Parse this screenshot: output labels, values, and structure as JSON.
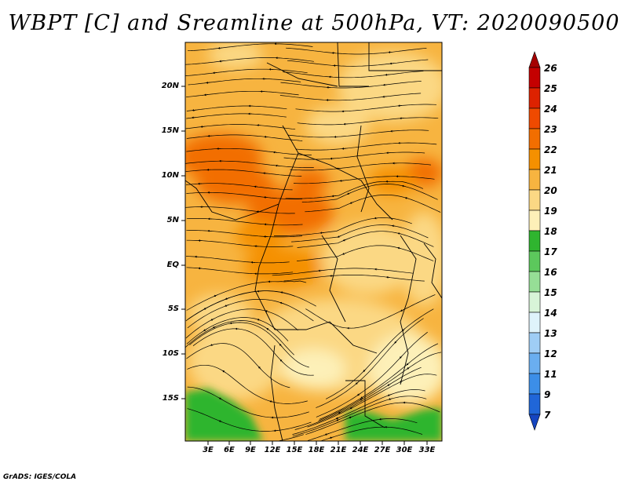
{
  "title": "WBPT [C] and Sreamline at 500hPa, VT: 2020090500",
  "credit": "GrADS: IGES/COLA",
  "map": {
    "lat_labels": [
      "20N",
      "15N",
      "10N",
      "5N",
      "EQ",
      "5S",
      "10S",
      "15S"
    ],
    "lon_labels": [
      "3E",
      "6E",
      "9E",
      "12E",
      "15E",
      "18E",
      "21E",
      "24E",
      "27E",
      "30E",
      "33E"
    ]
  },
  "colorbar": {
    "labels": [
      "26",
      "25",
      "24",
      "23",
      "22",
      "21",
      "20",
      "19",
      "18",
      "17",
      "16",
      "15",
      "14",
      "13",
      "12",
      "11",
      "9",
      "7"
    ],
    "colors": [
      "#a50000",
      "#c40000",
      "#dd2200",
      "#ef4a00",
      "#f26e00",
      "#f59000",
      "#f7b440",
      "#fbd884",
      "#fdf0b8",
      "#2fb52f",
      "#5cc85c",
      "#96de96",
      "#d8f4d8",
      "#dff3fb",
      "#9fcdf5",
      "#6aaef0",
      "#3c8ee8",
      "#2066d8",
      "#1545c0"
    ]
  },
  "icons": [
    "arrow-up-icon",
    "arrow-down-icon"
  ]
}
